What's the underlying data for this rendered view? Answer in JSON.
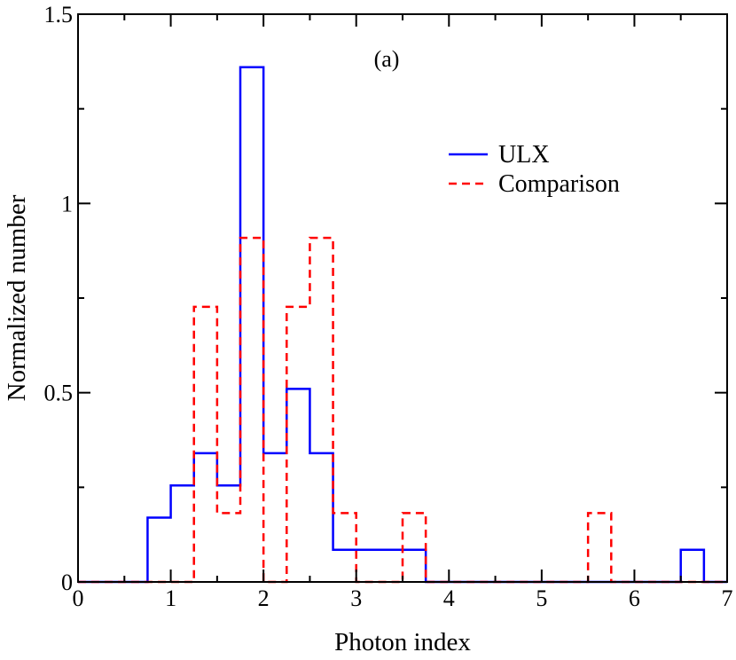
{
  "chart_data": {
    "type": "histogram",
    "annotation": "(a)",
    "xlabel": "Photon index",
    "ylabel": "Normalized number",
    "xlim": [
      0,
      7
    ],
    "ylim": [
      0,
      1.5
    ],
    "x_ticks": [
      0,
      1,
      2,
      3,
      4,
      5,
      6,
      7
    ],
    "x_tick_labels": [
      "0",
      "1",
      "2",
      "3",
      "4",
      "5",
      "6",
      "7"
    ],
    "y_ticks": [
      0,
      0.5,
      1,
      1.5
    ],
    "y_tick_labels": [
      "0",
      "0.5",
      "1",
      "1.5"
    ],
    "bin_edges": [
      0,
      0.25,
      0.5,
      0.75,
      1,
      1.25,
      1.5,
      1.75,
      2,
      2.25,
      2.5,
      2.75,
      3,
      3.25,
      3.5,
      3.75,
      4,
      4.25,
      4.5,
      4.75,
      5,
      5.25,
      5.5,
      5.75,
      6,
      6.25,
      6.5,
      6.75,
      7
    ],
    "series": [
      {
        "name": "ULX",
        "color": "#0000ff",
        "dash": "solid",
        "values": [
          0,
          0,
          0,
          0.17,
          0.255,
          0.34,
          0.255,
          1.36,
          0.34,
          0.51,
          0.34,
          0.085,
          0.085,
          0.085,
          0.085,
          0,
          0,
          0,
          0,
          0,
          0,
          0,
          0,
          0,
          0,
          0,
          0.085,
          0
        ]
      },
      {
        "name": "Comparison",
        "color": "#ff0000",
        "dash": "dashed",
        "values": [
          0,
          0,
          0,
          0,
          0,
          0.727,
          0.182,
          0.909,
          0,
          0.727,
          0.909,
          0.182,
          0,
          0,
          0.182,
          0,
          0,
          0,
          0,
          0,
          0,
          0,
          0.182,
          0,
          0,
          0,
          0,
          0
        ]
      }
    ],
    "legend": {
      "placement": "top-right",
      "entries": [
        "ULX",
        "Comparison"
      ]
    }
  }
}
